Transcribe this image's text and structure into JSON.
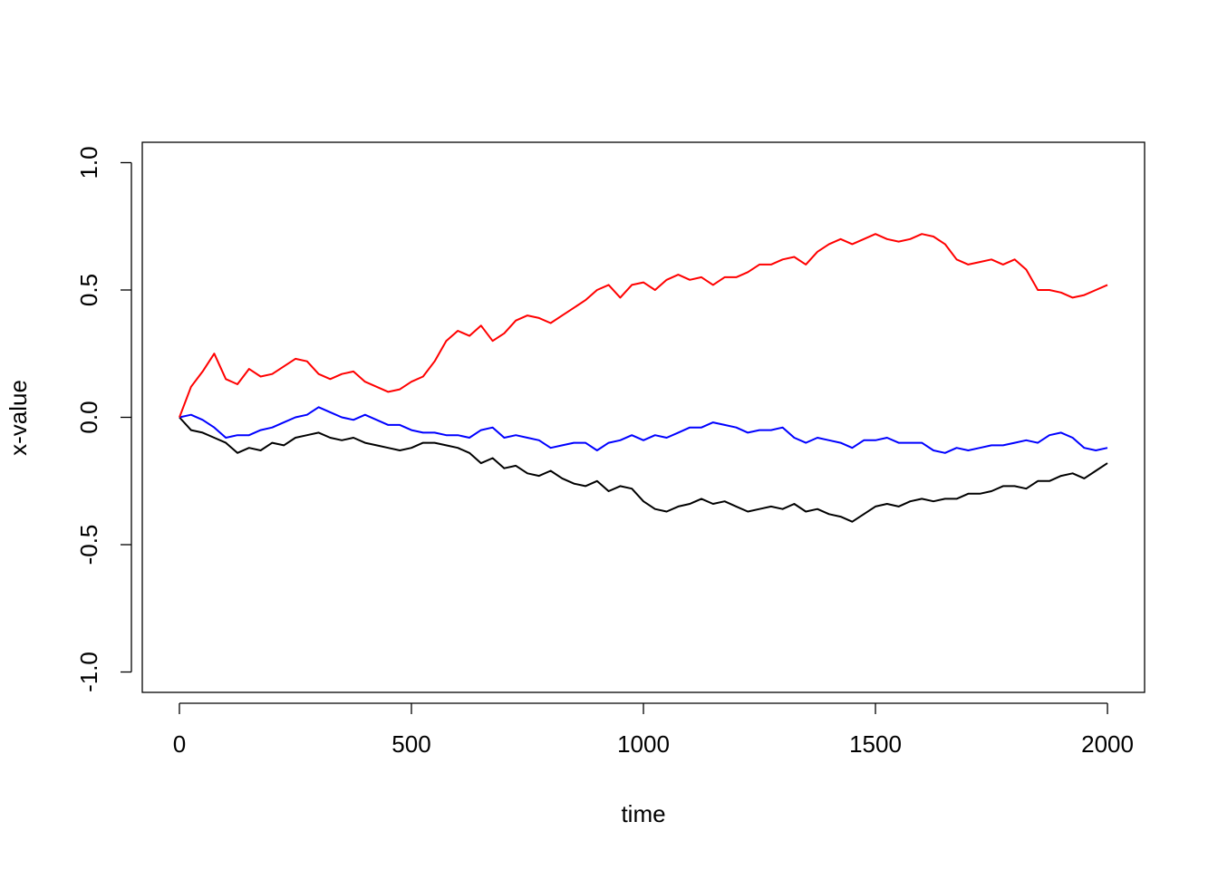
{
  "chart_data": {
    "type": "line",
    "xlabel": "time",
    "ylabel": "x-value",
    "x": [
      0,
      25,
      50,
      75,
      100,
      125,
      150,
      175,
      200,
      225,
      250,
      275,
      300,
      325,
      350,
      375,
      400,
      425,
      450,
      475,
      500,
      525,
      550,
      575,
      600,
      625,
      650,
      675,
      700,
      725,
      750,
      775,
      800,
      825,
      850,
      875,
      900,
      925,
      950,
      975,
      1000,
      1025,
      1050,
      1075,
      1100,
      1125,
      1150,
      1175,
      1200,
      1225,
      1250,
      1275,
      1300,
      1325,
      1350,
      1375,
      1400,
      1425,
      1450,
      1475,
      1500,
      1525,
      1550,
      1575,
      1600,
      1625,
      1650,
      1675,
      1700,
      1725,
      1750,
      1775,
      1800,
      1825,
      1850,
      1875,
      1900,
      1925,
      1950,
      1975,
      2000
    ],
    "series": [
      {
        "color": "#000000",
        "values": [
          0,
          -0.05,
          -0.06,
          -0.08,
          -0.1,
          -0.14,
          -0.12,
          -0.13,
          -0.1,
          -0.11,
          -0.08,
          -0.07,
          -0.06,
          -0.08,
          -0.09,
          -0.08,
          -0.1,
          -0.11,
          -0.12,
          -0.13,
          -0.12,
          -0.1,
          -0.1,
          -0.11,
          -0.12,
          -0.14,
          -0.18,
          -0.16,
          -0.2,
          -0.19,
          -0.22,
          -0.23,
          -0.21,
          -0.24,
          -0.26,
          -0.27,
          -0.25,
          -0.29,
          -0.27,
          -0.28,
          -0.33,
          -0.36,
          -0.37,
          -0.35,
          -0.34,
          -0.32,
          -0.34,
          -0.33,
          -0.35,
          -0.37,
          -0.36,
          -0.35,
          -0.36,
          -0.34,
          -0.37,
          -0.36,
          -0.38,
          -0.39,
          -0.41,
          -0.38,
          -0.35,
          -0.34,
          -0.35,
          -0.33,
          -0.32,
          -0.33,
          -0.32,
          -0.32,
          -0.3,
          -0.3,
          -0.29,
          -0.27,
          -0.27,
          -0.28,
          -0.25,
          -0.25,
          -0.23,
          -0.22,
          -0.24,
          -0.21,
          -0.18
        ]
      },
      {
        "color": "#0000ff",
        "values": [
          0,
          0.01,
          -0.01,
          -0.04,
          -0.08,
          -0.07,
          -0.07,
          -0.05,
          -0.04,
          -0.02,
          0,
          0.01,
          0.04,
          0.02,
          0,
          -0.01,
          0.01,
          -0.01,
          -0.03,
          -0.03,
          -0.05,
          -0.06,
          -0.06,
          -0.07,
          -0.07,
          -0.08,
          -0.05,
          -0.04,
          -0.08,
          -0.07,
          -0.08,
          -0.09,
          -0.12,
          -0.11,
          -0.1,
          -0.1,
          -0.13,
          -0.1,
          -0.09,
          -0.07,
          -0.09,
          -0.07,
          -0.08,
          -0.06,
          -0.04,
          -0.04,
          -0.02,
          -0.03,
          -0.04,
          -0.06,
          -0.05,
          -0.05,
          -0.04,
          -0.08,
          -0.1,
          -0.08,
          -0.09,
          -0.1,
          -0.12,
          -0.09,
          -0.09,
          -0.08,
          -0.1,
          -0.1,
          -0.1,
          -0.13,
          -0.14,
          -0.12,
          -0.13,
          -0.12,
          -0.11,
          -0.11,
          -0.1,
          -0.09,
          -0.1,
          -0.07,
          -0.06,
          -0.08,
          -0.12,
          -0.13,
          -0.12
        ]
      },
      {
        "color": "#ff0000",
        "values": [
          0,
          0.12,
          0.18,
          0.25,
          0.15,
          0.13,
          0.19,
          0.16,
          0.17,
          0.2,
          0.23,
          0.22,
          0.17,
          0.15,
          0.17,
          0.18,
          0.14,
          0.12,
          0.1,
          0.11,
          0.14,
          0.16,
          0.22,
          0.3,
          0.34,
          0.32,
          0.36,
          0.3,
          0.33,
          0.38,
          0.4,
          0.39,
          0.37,
          0.4,
          0.43,
          0.46,
          0.5,
          0.52,
          0.47,
          0.52,
          0.53,
          0.5,
          0.54,
          0.56,
          0.54,
          0.55,
          0.52,
          0.55,
          0.55,
          0.57,
          0.6,
          0.6,
          0.62,
          0.63,
          0.6,
          0.65,
          0.68,
          0.7,
          0.68,
          0.7,
          0.72,
          0.7,
          0.69,
          0.7,
          0.72,
          0.71,
          0.68,
          0.62,
          0.6,
          0.61,
          0.62,
          0.6,
          0.62,
          0.58,
          0.5,
          0.5,
          0.49,
          0.47,
          0.48,
          0.5,
          0.52
        ]
      }
    ],
    "xlim": [
      -80,
      2080
    ],
    "ylim": [
      -1.08,
      1.08
    ],
    "xticks": [
      0,
      500,
      1000,
      1500,
      2000
    ],
    "yticks": [
      {
        "value": -1,
        "label": "-1.0"
      },
      -0.5,
      {
        "value": 0,
        "label": "0.0"
      },
      0.5,
      {
        "value": 1,
        "label": "1.0"
      }
    ]
  }
}
